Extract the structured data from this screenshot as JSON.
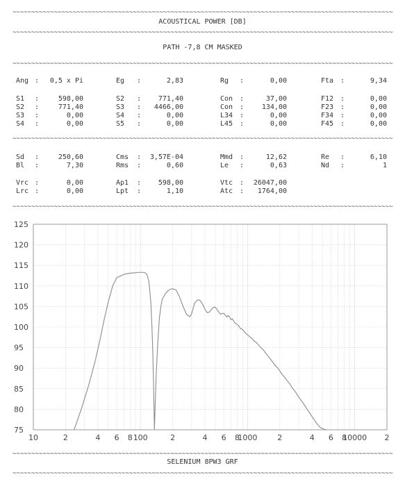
{
  "header": {
    "title": "ACOUSTICAL POWER [DB]",
    "subtitle": "PATH -7,8 CM   MASKED"
  },
  "footer": {
    "label": "SELENIUM 8PW3 GRF"
  },
  "separator": "~~~~~~~~~~~~~~~~~~~~~~~~~~~~~~~~~~~~~~~~~~~~~~~~~~~~~~~~~~~~~~~~~~~~~~~~~~~~~~~~~~~~~~~~~~~~~~~~~~~~~~~~~~~~",
  "params": {
    "block1": [
      [
        {
          "l": "Ang",
          "v": "0,5 x Pi"
        },
        {
          "l": "Eg",
          "v": "2,83"
        },
        {
          "l": "Rg",
          "v": "0,00"
        },
        {
          "l": "Fta",
          "v": "9,34"
        }
      ]
    ],
    "block2": [
      [
        {
          "l": "S1",
          "v": "598,00"
        },
        {
          "l": "S2",
          "v": "771,40"
        },
        {
          "l": "Con",
          "v": "37,00"
        },
        {
          "l": "F12",
          "v": "0,00"
        }
      ],
      [
        {
          "l": "S2",
          "v": "771,40"
        },
        {
          "l": "S3",
          "v": "4466,00"
        },
        {
          "l": "Con",
          "v": "134,00"
        },
        {
          "l": "F23",
          "v": "0,00"
        }
      ],
      [
        {
          "l": "S3",
          "v": "0,00"
        },
        {
          "l": "S4",
          "v": "0,00"
        },
        {
          "l": "L34",
          "v": "0,00"
        },
        {
          "l": "F34",
          "v": "0,00"
        }
      ],
      [
        {
          "l": "S4",
          "v": "0,00"
        },
        {
          "l": "S5",
          "v": "0,00"
        },
        {
          "l": "L45",
          "v": "0,00"
        },
        {
          "l": "F45",
          "v": "0,00"
        }
      ]
    ],
    "block3": [
      [
        {
          "l": "Sd",
          "v": "250,60"
        },
        {
          "l": "Cms",
          "v": "3,57E-04"
        },
        {
          "l": "Mmd",
          "v": "12,62"
        },
        {
          "l": "Re",
          "v": "6,10"
        }
      ],
      [
        {
          "l": "Bl",
          "v": "7,30"
        },
        {
          "l": "Rms",
          "v": "0,60"
        },
        {
          "l": "Le",
          "v": "0,63"
        },
        {
          "l": "Nd",
          "v": "1"
        }
      ]
    ],
    "block4": [
      [
        {
          "l": "Vrc",
          "v": "0,00"
        },
        {
          "l": "Ap1",
          "v": "598,00"
        },
        {
          "l": "Vtc",
          "v": "26047,00"
        }
      ],
      [
        {
          "l": "Lrc",
          "v": "0,00"
        },
        {
          "l": "Lpt",
          "v": "1,10"
        },
        {
          "l": "Atc",
          "v": "1764,00"
        }
      ]
    ]
  },
  "chart_data": {
    "type": "line",
    "xscale": "log",
    "xlim": [
      10,
      20000
    ],
    "ylim": [
      75,
      125
    ],
    "yticks": [
      "75",
      "80",
      "85",
      "90",
      "95",
      "100",
      "105",
      "110",
      "115",
      "120",
      "125"
    ],
    "xticks": [
      {
        "v": 10,
        "label": "10"
      },
      {
        "v": 20,
        "label": "2"
      },
      {
        "v": 40,
        "label": "4"
      },
      {
        "v": 60,
        "label": "6"
      },
      {
        "v": 80,
        "label": "8"
      },
      {
        "v": 100,
        "label": "100"
      },
      {
        "v": 200,
        "label": "2"
      },
      {
        "v": 400,
        "label": "4"
      },
      {
        "v": 600,
        "label": "6"
      },
      {
        "v": 800,
        "label": "8"
      },
      {
        "v": 1000,
        "label": "1000"
      },
      {
        "v": 2000,
        "label": "2"
      },
      {
        "v": 4000,
        "label": "4"
      },
      {
        "v": 6000,
        "label": "6"
      },
      {
        "v": 8000,
        "label": "8"
      },
      {
        "v": 10000,
        "label": "10000"
      },
      {
        "v": 20000,
        "label": "2"
      }
    ],
    "grid": true,
    "colors": {
      "line": "#8a8a8a",
      "grid": "#cfcfcf",
      "frame": "#9a9a9a"
    },
    "series": [
      {
        "x": [
          24,
          28,
          33,
          38,
          42,
          46,
          50,
          55,
          60,
          70,
          80,
          90,
          95,
          100,
          105,
          110,
          115,
          120,
          125,
          128,
          130,
          132,
          135,
          140,
          145,
          150,
          155,
          160,
          170,
          180,
          190,
          200,
          215,
          230,
          250,
          270,
          290,
          300,
          310,
          320,
          340,
          360,
          380,
          400,
          420,
          440,
          460,
          480,
          500,
          520,
          540,
          560,
          580,
          600,
          620,
          640,
          660,
          680,
          700,
          720,
          740,
          760,
          780,
          800,
          830,
          860,
          900,
          950,
          1000,
          1050,
          1100,
          1150,
          1200,
          1250,
          1300,
          1350,
          1400,
          1450,
          1500,
          1600,
          1700,
          1800,
          1900,
          2000,
          2100,
          2200,
          2300,
          2400,
          2500,
          2600,
          2700,
          2800,
          3000,
          3300,
          3600,
          4000,
          4400,
          4800,
          5200,
          5500
        ],
        "y": [
          75,
          80,
          86,
          92,
          97,
          102,
          106,
          110,
          112,
          112.8,
          113.1,
          113.2,
          113.3,
          113.3,
          113.3,
          113.2,
          112.8,
          111,
          106,
          100,
          95,
          88,
          75,
          88,
          96,
          102,
          105,
          106.8,
          108,
          108.8,
          109.2,
          109.3,
          109,
          107.5,
          105,
          103,
          102.5,
          103.2,
          104.5,
          105.8,
          106.6,
          106.5,
          105.6,
          104.3,
          103.5,
          103.6,
          104.3,
          104.8,
          104.8,
          104.2,
          103.6,
          103.1,
          103.3,
          103.3,
          102.9,
          102.4,
          102.8,
          102.4,
          101.8,
          102.0,
          101.5,
          101.0,
          100.8,
          100.6,
          100.2,
          99.6,
          99.4,
          98.6,
          98.1,
          97.6,
          97.2,
          96.6,
          96.3,
          95.8,
          95.3,
          94.8,
          94.5,
          93.9,
          93.4,
          92.5,
          91.6,
          90.7,
          90.1,
          89.3,
          88.5,
          87.9,
          87.2,
          86.6,
          86.0,
          85.3,
          84.7,
          84.2,
          83.0,
          81.5,
          80.0,
          78.2,
          76.6,
          75.5,
          75.1,
          75
        ]
      }
    ]
  }
}
